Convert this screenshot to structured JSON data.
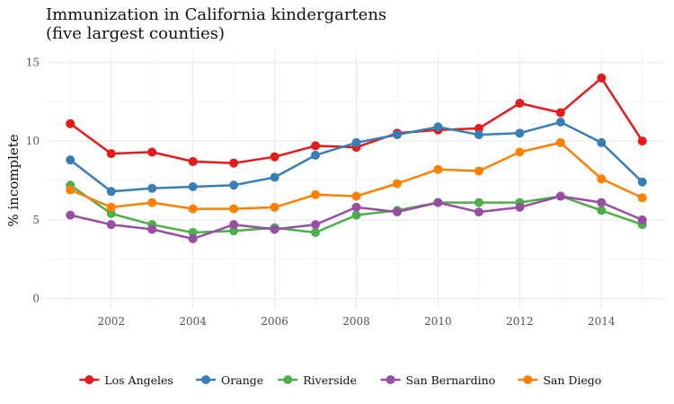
{
  "chart_data": {
    "type": "line",
    "title": "Immunization in California kindergartens",
    "subtitle": "(five largest counties)",
    "xlabel": "",
    "ylabel": "% incomplete",
    "x": [
      2001,
      2002,
      2003,
      2004,
      2005,
      2006,
      2007,
      2008,
      2009,
      2010,
      2011,
      2012,
      2013,
      2014,
      2015
    ],
    "xlim": [
      2000.4,
      2015.6
    ],
    "ylim": [
      -0.7,
      15.7
    ],
    "x_ticks": [
      2002,
      2004,
      2006,
      2008,
      2010,
      2012,
      2014
    ],
    "y_ticks": [
      0,
      5,
      10,
      15
    ],
    "x_tick_labels": [
      "2002",
      "2004",
      "2006",
      "2008",
      "2010",
      "2012",
      "2014"
    ],
    "y_tick_labels": [
      "0",
      "5",
      "10",
      "15"
    ],
    "grid": true,
    "legend_position": "bottom",
    "series": [
      {
        "name": "Los Angeles",
        "color": "#e41a1c",
        "values": [
          11.1,
          9.2,
          9.3,
          8.7,
          8.6,
          9.0,
          9.7,
          9.6,
          10.5,
          10.7,
          10.8,
          12.4,
          11.8,
          14.0,
          10.0
        ]
      },
      {
        "name": "Orange",
        "color": "#377eb8",
        "values": [
          8.8,
          6.8,
          7.0,
          7.1,
          7.2,
          7.7,
          9.1,
          9.9,
          10.4,
          10.9,
          10.4,
          10.5,
          11.2,
          9.9,
          7.4
        ]
      },
      {
        "name": "Riverside",
        "color": "#4daf4a",
        "values": [
          7.2,
          5.4,
          4.7,
          4.2,
          4.3,
          4.5,
          4.2,
          5.3,
          5.6,
          6.1,
          6.1,
          6.1,
          6.5,
          5.6,
          4.7
        ]
      },
      {
        "name": "San Bernardino",
        "color": "#984ea3",
        "values": [
          5.3,
          4.7,
          4.4,
          3.8,
          4.7,
          4.4,
          4.7,
          5.8,
          5.5,
          6.1,
          5.5,
          5.8,
          6.5,
          6.1,
          5.0
        ]
      },
      {
        "name": "San Diego",
        "color": "#ff7f00",
        "values": [
          6.9,
          5.8,
          6.1,
          5.7,
          5.7,
          5.8,
          6.6,
          6.5,
          7.3,
          8.2,
          8.1,
          9.3,
          9.9,
          7.6,
          6.4
        ]
      }
    ]
  }
}
